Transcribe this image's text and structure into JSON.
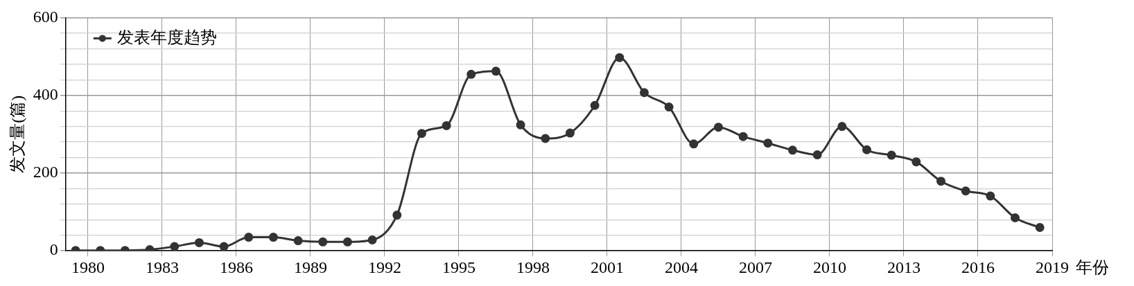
{
  "chart_data": {
    "type": "line",
    "xlabel": "年份",
    "ylabel": "发文量(篇)",
    "legend": "top left",
    "marker": "circle",
    "line_style": "solid",
    "grid": true,
    "x": [
      1979.5,
      1980.5,
      1981.5,
      1982.5,
      1983.5,
      1984.5,
      1985.5,
      1986.5,
      1987.5,
      1988.5,
      1989.5,
      1990.5,
      1991.5,
      1992.5,
      1993.5,
      1994.5,
      1995.5,
      1996.5,
      1997.5,
      1998.5,
      1999.5,
      2000.5,
      2001.5,
      2002.5,
      2003.5,
      2004.5,
      2005.5,
      2006.5,
      2007.5,
      2008.5,
      2009.5,
      2010.5,
      2011.5,
      2012.5,
      2013.5,
      2014.5,
      2015.5,
      2016.5,
      2017.5,
      2018.5
    ],
    "series": [
      {
        "name": "发表年度趋势",
        "color": "#333333",
        "values": [
          1,
          1,
          1,
          3,
          11,
          21,
          11,
          35,
          35,
          26,
          23,
          23,
          28,
          92,
          302,
          322,
          454,
          462,
          324,
          289,
          303,
          374,
          497,
          407,
          370,
          275,
          318,
          294,
          277,
          259,
          247,
          320,
          260,
          246,
          229,
          179,
          154,
          141,
          85,
          60
        ]
      }
    ],
    "xlim": [
      1979.1,
      2019
    ],
    "xticks": [
      1980,
      1983,
      1986,
      1989,
      1992,
      1995,
      1998,
      2001,
      2004,
      2007,
      2010,
      2013,
      2016,
      2019
    ],
    "ylim": [
      0,
      600
    ],
    "yticks": [
      0,
      {
        "value": 40,
        "label": null
      },
      {
        "value": 80,
        "label": null
      },
      {
        "value": 120,
        "label": null
      },
      {
        "value": 160,
        "label": null
      },
      200,
      {
        "value": 240,
        "label": null
      },
      {
        "value": 280,
        "label": null
      },
      {
        "value": 320,
        "label": null
      },
      {
        "value": 360,
        "label": null
      },
      400,
      {
        "value": 440,
        "label": null
      },
      {
        "value": 480,
        "label": null
      },
      {
        "value": 520,
        "label": null
      },
      {
        "value": 560,
        "label": null
      },
      600
    ]
  }
}
